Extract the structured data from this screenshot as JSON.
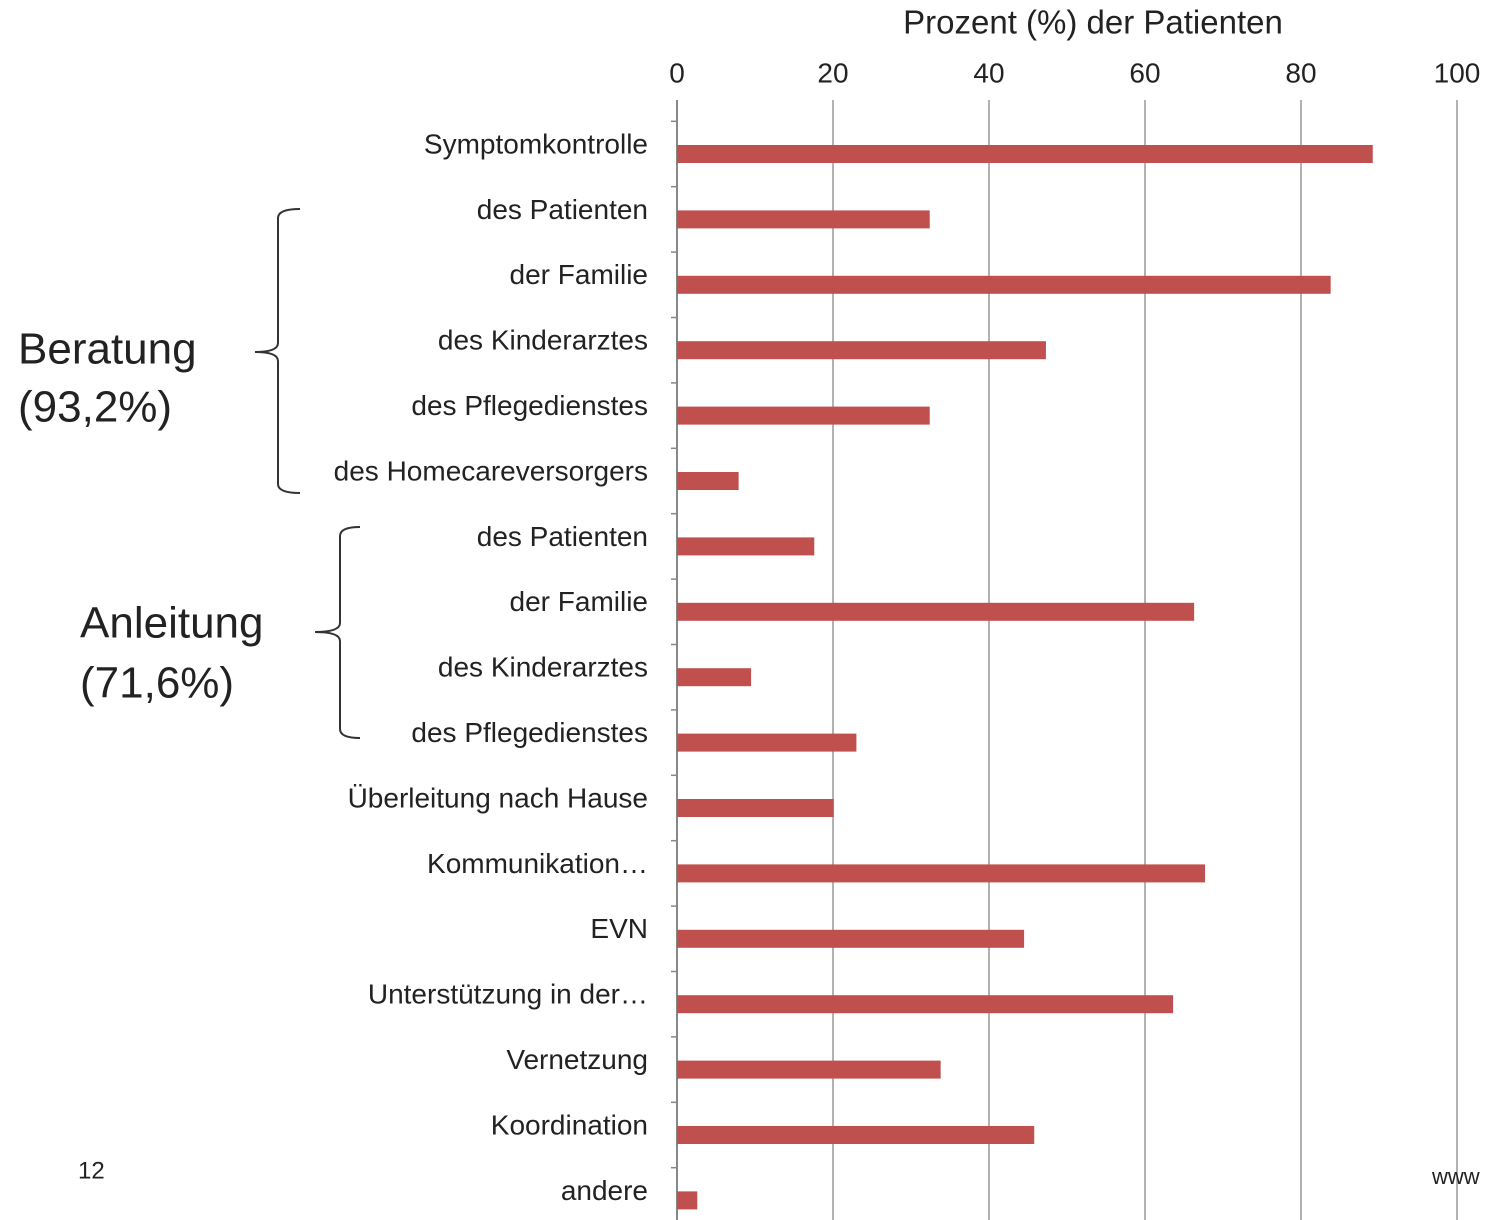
{
  "chart_data": {
    "type": "barh",
    "xlabel": "Prozent (%) der Patienten",
    "categories": [
      "Symptomkontrolle",
      "des Patienten",
      "der Familie",
      "des Kinderarztes",
      "des Pflegedienstes",
      "des Homecareversorgers",
      "des Patienten",
      "der Familie",
      "des Kinderarztes",
      "des Pflegedienstes",
      "Überleitung nach Hause",
      "Kommunikation…",
      "EVN",
      "Unterstützung in der…",
      "Vernetzung",
      "Koordination",
      "andere"
    ],
    "values": [
      89.2,
      32.4,
      83.8,
      47.3,
      32.4,
      7.9,
      17.6,
      66.3,
      9.5,
      23,
      20.1,
      67.7,
      44.5,
      63.6,
      33.8,
      45.8,
      2.6
    ],
    "color": "#c0504d",
    "xlim": [
      0,
      100
    ],
    "xticks": [
      0,
      20,
      40,
      60,
      80,
      100
    ],
    "grid": true,
    "annotations": [
      "Beratung",
      "(93,2%)",
      "Anleitung",
      "(71,6%)",
      "12",
      "www"
    ]
  }
}
